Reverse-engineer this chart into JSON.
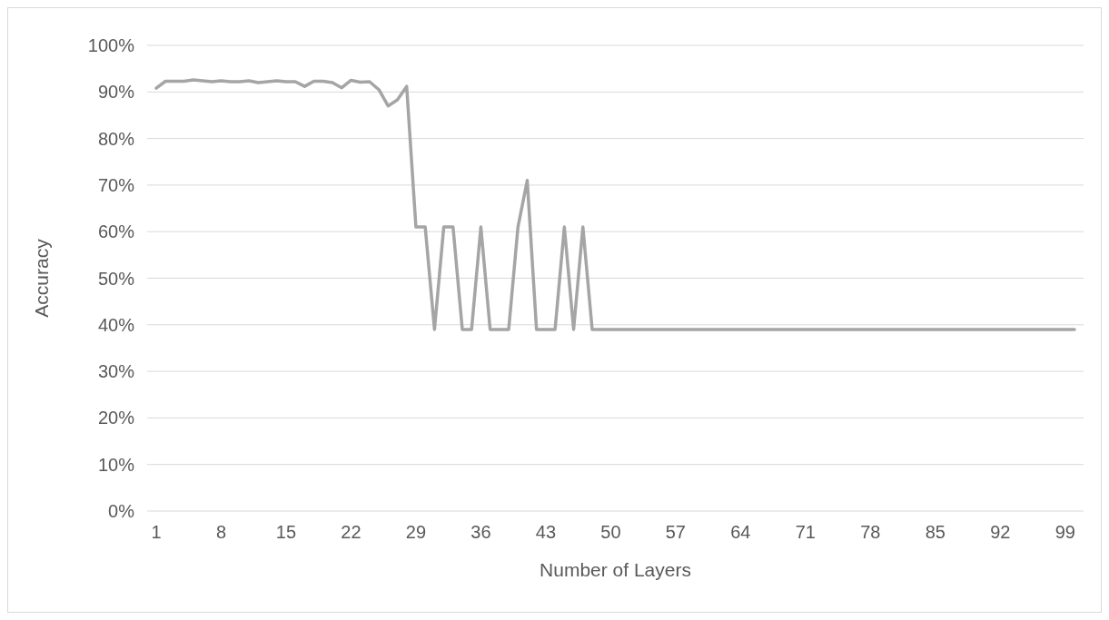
{
  "chart_data": {
    "type": "line",
    "xlabel": "Number of Layers",
    "ylabel": "Accuracy",
    "categories": [
      "1",
      null,
      null,
      null,
      null,
      null,
      null,
      "8",
      null,
      null,
      null,
      null,
      null,
      null,
      "15",
      null,
      null,
      null,
      null,
      null,
      null,
      "22",
      null,
      null,
      null,
      null,
      null,
      null,
      "29",
      null,
      null,
      null,
      null,
      null,
      null,
      "36",
      null,
      null,
      null,
      null,
      null,
      null,
      "43",
      null,
      null,
      null,
      null,
      null,
      null,
      "50",
      null,
      null,
      null,
      null,
      null,
      null,
      "57",
      null,
      null,
      null,
      null,
      null,
      null,
      "64",
      null,
      null,
      null,
      null,
      null,
      null,
      "71",
      null,
      null,
      null,
      null,
      null,
      null,
      "78",
      null,
      null,
      null,
      null,
      null,
      null,
      "85",
      null,
      null,
      null,
      null,
      null,
      null,
      "92",
      null,
      null,
      null,
      null,
      null,
      null,
      "99",
      null
    ],
    "series": [
      {
        "color": "#a5a5a5",
        "values": [
          90.8,
          92.3,
          92.3,
          92.3,
          92.6,
          92.4,
          92.2,
          92.4,
          92.2,
          92.2,
          92.4,
          92.0,
          92.2,
          92.4,
          92.2,
          92.2,
          91.2,
          92.3,
          92.3,
          92.0,
          90.9,
          92.5,
          92.1,
          92.2,
          90.5,
          87.0,
          88.3,
          91.2,
          61,
          61,
          39,
          61,
          61,
          39,
          39,
          61,
          39,
          39,
          39,
          61,
          71,
          39,
          39,
          39,
          61,
          39,
          61,
          39,
          39,
          39,
          39,
          39,
          39,
          39,
          39,
          39,
          39,
          39,
          39,
          39,
          39,
          39,
          39,
          39,
          39,
          39,
          39,
          39,
          39,
          39,
          39,
          39,
          39,
          39,
          39,
          39,
          39,
          39,
          39,
          39,
          39,
          39,
          39,
          39,
          39,
          39,
          39,
          39,
          39,
          39,
          39,
          39,
          39,
          39,
          39,
          39,
          39,
          39,
          39,
          39
        ]
      }
    ],
    "ylim": [
      0,
      100
    ],
    "yticks": [
      {
        "value": 0,
        "label": "0%"
      },
      {
        "value": 10,
        "label": "10%"
      },
      {
        "value": 20,
        "label": "20%"
      },
      {
        "value": 30,
        "label": "30%"
      },
      {
        "value": 40,
        "label": "40%"
      },
      {
        "value": 50,
        "label": "50%"
      },
      {
        "value": 60,
        "label": "60%"
      },
      {
        "value": 70,
        "label": "70%"
      },
      {
        "value": 80,
        "label": "80%"
      },
      {
        "value": 90,
        "label": "90%"
      },
      {
        "value": 100,
        "label": "100%"
      }
    ],
    "grid": "y",
    "marker": "none",
    "line_style": "solid"
  }
}
